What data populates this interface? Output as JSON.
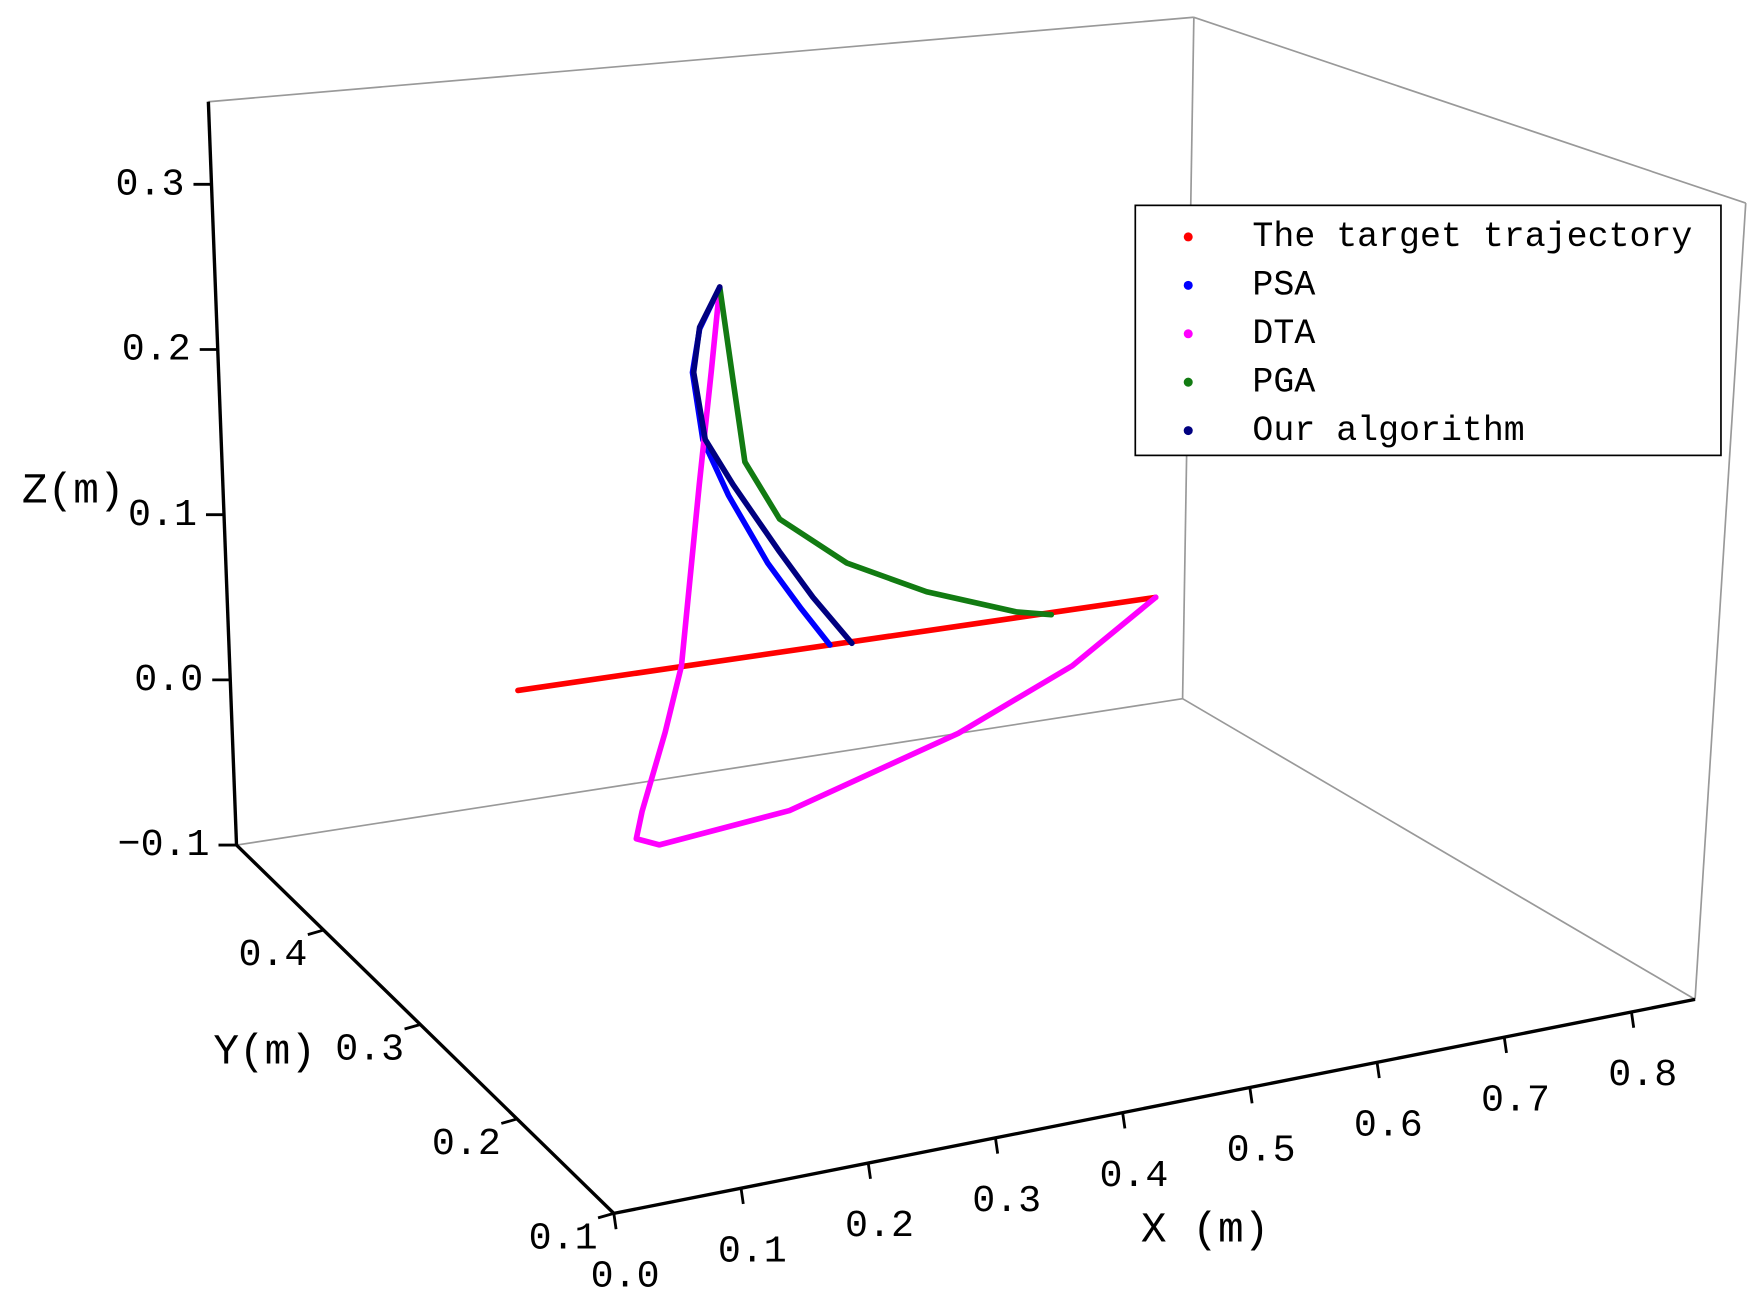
{
  "chart_data": {
    "type": "line3d",
    "xlabel": "X (m)",
    "ylabel": "Y(m)",
    "zlabel": "Z(m)",
    "xlim": [
      0,
      0.85
    ],
    "ylim": [
      0.1,
      0.49
    ],
    "zlim": [
      -0.1,
      0.35
    ],
    "xticks": [
      {
        "value": 0,
        "label": "0.0"
      },
      0.1,
      0.2,
      0.3,
      0.4,
      0.5,
      0.6,
      0.7,
      0.8
    ],
    "yticks": [
      0.1,
      0.2,
      0.3,
      0.4
    ],
    "zticks": [
      {
        "value": -0.1,
        "label": "−0.1"
      },
      {
        "value": 0,
        "label": "0.0"
      },
      0.1,
      0.2,
      0.3
    ],
    "series": [
      {
        "name": "The target trajectory",
        "color": "#ff0000",
        "x": [
          0.17,
          0.72
        ],
        "y": [
          0.4,
          0.4
        ],
        "z": [
          0.025,
          0.023
        ]
      },
      {
        "name": "PSA",
        "color": "#0000ff",
        "x": [
          0.343,
          0.326,
          0.32,
          0.329,
          0.351,
          0.385,
          0.414,
          0.439
        ],
        "y": [
          0.4,
          0.4,
          0.4,
          0.4,
          0.4,
          0.4,
          0.4,
          0.4
        ],
        "z": [
          0.253,
          0.229,
          0.203,
          0.161,
          0.125,
          0.08,
          0.049,
          0.024
        ]
      },
      {
        "name": "DTA",
        "color": "#ff00ff",
        "x": [
          0.343,
          0.336,
          0.326,
          0.311,
          0.297,
          0.277,
          0.272,
          0.292,
          0.405,
          0.551,
          0.649,
          0.72
        ],
        "y": [
          0.4,
          0.4,
          0.4,
          0.4,
          0.4,
          0.4,
          0.4,
          0.4,
          0.4,
          0.4,
          0.4,
          0.4
        ],
        "z": [
          0.253,
          0.202,
          0.134,
          0.025,
          -0.014,
          -0.06,
          -0.076,
          -0.082,
          -0.074,
          -0.043,
          -0.012,
          0.023
        ]
      },
      {
        "name": "PGA",
        "color": "#127b12",
        "x": [
          0.343,
          0.355,
          0.365,
          0.395,
          0.453,
          0.522,
          0.6,
          0.63
        ],
        "y": [
          0.4,
          0.4,
          0.4,
          0.4,
          0.4,
          0.4,
          0.4,
          0.4
        ],
        "z": [
          0.253,
          0.193,
          0.144,
          0.106,
          0.073,
          0.048,
          0.027,
          0.022
        ]
      },
      {
        "name": "Our algorithm",
        "color": "#000080",
        "x": [
          0.343,
          0.326,
          0.321,
          0.331,
          0.355,
          0.395,
          0.424,
          0.458
        ],
        "y": [
          0.4,
          0.4,
          0.4,
          0.4,
          0.4,
          0.4,
          0.4,
          0.4
        ],
        "z": [
          0.253,
          0.23,
          0.203,
          0.161,
          0.131,
          0.086,
          0.055,
          0.023
        ]
      }
    ]
  }
}
